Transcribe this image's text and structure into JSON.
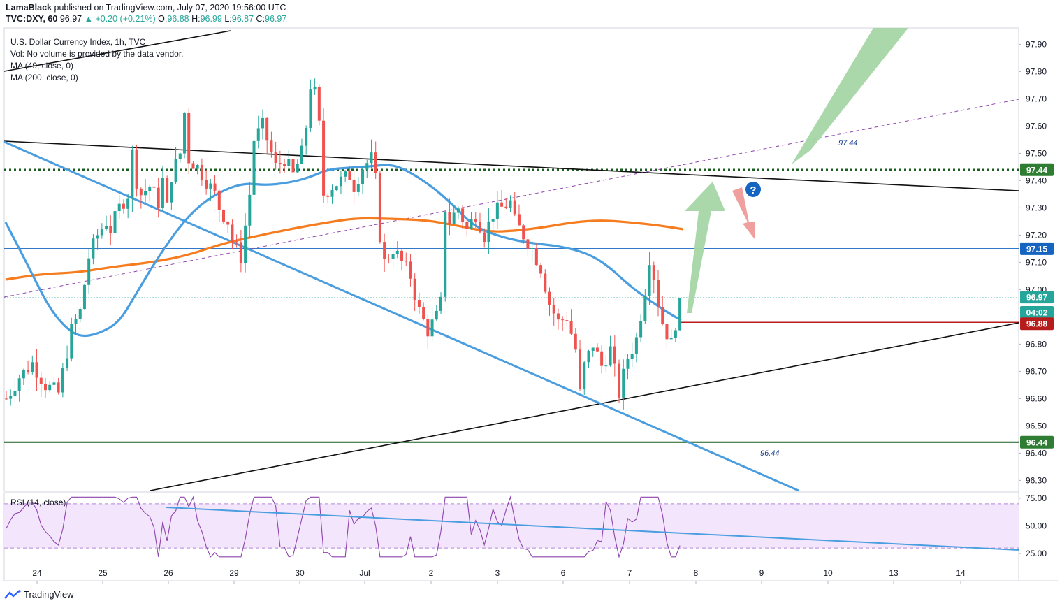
{
  "header": {
    "publisher": "LamaBlack",
    "published_text": "published on TradingView.com, July 07, 2020 19:56:00 UTC",
    "symbol": "TVC:DXY, 60",
    "last": "96.97",
    "change_arrow": "▲",
    "change": "+0.20 (+0.21%)",
    "o_label": "O:",
    "o": "96.88",
    "h_label": "H:",
    "h": "96.99",
    "l_label": "L:",
    "l": "96.87",
    "c_label": "C:",
    "c": "96.97"
  },
  "legend": {
    "title": "U.S. Dollar Currency Index, 1h, TVC",
    "vol": "Vol: No volume is provided by the data vendor.",
    "ma49": "MA (49, close, 0)",
    "ma200": "MA (200, close, 0)"
  },
  "rsi_legend": "RSI (14, close)",
  "footer": {
    "brand": "TradingView"
  },
  "colors": {
    "up": "#26a69a",
    "down": "#ef5350",
    "ma49": "#4a9ee0",
    "ma200": "#f57c1f",
    "zone": "#fdeee0",
    "rsi_band": "#f3e5fb",
    "rsi_line": "#8e44ad",
    "green_arrow": "#a5d6a7",
    "red_arrow": "#ef9a9a"
  },
  "chart_data": [
    {
      "type": "candlestick",
      "title": "U.S. Dollar Currency Index, 1h, TVC",
      "x_labels": [
        "24",
        "25",
        "26",
        "29",
        "30",
        "Jul",
        "2",
        "3",
        "6",
        "7",
        "8",
        "9",
        "10",
        "13",
        "14"
      ],
      "y_ticks": [
        "97.90",
        "97.80",
        "97.70",
        "97.60",
        "97.50",
        "97.40",
        "97.30",
        "97.20",
        "97.10",
        "97.00",
        "96.90",
        "96.80",
        "96.70",
        "96.60",
        "96.50",
        "96.40",
        "96.30"
      ],
      "ylim": [
        96.26,
        97.96
      ],
      "last_price": 96.97,
      "price_tags": [
        {
          "value": 97.44,
          "label": "97.44",
          "color": "#2e7d32"
        },
        {
          "value": 97.15,
          "label": "97.15",
          "color": "#1565c0"
        },
        {
          "value": 96.97,
          "label": "96.97",
          "color": "#26a69a"
        },
        {
          "label": "04:02",
          "color": "#26a69a"
        },
        {
          "value": 96.88,
          "label": "96.88",
          "color": "#b71c1c"
        },
        {
          "value": 96.44,
          "label": "96.44",
          "color": "#2e7d32"
        }
      ],
      "annotations": [
        {
          "text": "97.44"
        },
        {
          "text": "96.44"
        },
        {
          "text": "?"
        }
      ],
      "close_path": [
        [
          0,
          96.6
        ],
        [
          3,
          96.68
        ],
        [
          6,
          96.73
        ],
        [
          9,
          96.65
        ],
        [
          12,
          96.62
        ],
        [
          15,
          96.85
        ],
        [
          17,
          96.92
        ],
        [
          19,
          97.12
        ],
        [
          21,
          97.2
        ],
        [
          23,
          97.25
        ],
        [
          24,
          97.22
        ],
        [
          26,
          97.3
        ],
        [
          28,
          97.35
        ],
        [
          29,
          97.5
        ],
        [
          30,
          97.4
        ],
        [
          31,
          97.35
        ],
        [
          33,
          97.38
        ],
        [
          35,
          97.32
        ],
        [
          36,
          97.4
        ],
        [
          37,
          97.3
        ],
        [
          38,
          97.42
        ],
        [
          40,
          97.5
        ],
        [
          41,
          97.65
        ],
        [
          42,
          97.48
        ],
        [
          44,
          97.45
        ],
        [
          46,
          97.4
        ],
        [
          48,
          97.35
        ],
        [
          49,
          97.3
        ],
        [
          51,
          97.25
        ],
        [
          52,
          97.18
        ],
        [
          54,
          97.12
        ],
        [
          56,
          97.35
        ],
        [
          57,
          97.55
        ],
        [
          59,
          97.6
        ],
        [
          61,
          97.5
        ],
        [
          62,
          97.45
        ],
        [
          64,
          97.48
        ],
        [
          66,
          97.42
        ],
        [
          68,
          97.5
        ],
        [
          69,
          97.6
        ],
        [
          70,
          97.75
        ],
        [
          71,
          97.72
        ],
        [
          72,
          97.6
        ],
        [
          73,
          97.35
        ],
        [
          75,
          97.38
        ],
        [
          77,
          97.4
        ],
        [
          79,
          97.42
        ],
        [
          80,
          97.38
        ],
        [
          82,
          97.45
        ],
        [
          84,
          97.48
        ],
        [
          85,
          97.4
        ],
        [
          86,
          97.2
        ],
        [
          87,
          97.1
        ],
        [
          89,
          97.15
        ],
        [
          91,
          97.1
        ],
        [
          93,
          97.05
        ],
        [
          95,
          96.92
        ],
        [
          97,
          96.85
        ],
        [
          99,
          96.9
        ],
        [
          100,
          96.95
        ],
        [
          101,
          97.3
        ],
        [
          102,
          97.25
        ],
        [
          104,
          97.3
        ],
        [
          106,
          97.22
        ],
        [
          108,
          97.28
        ],
        [
          110,
          97.2
        ],
        [
          112,
          97.28
        ],
        [
          114,
          97.3
        ],
        [
          116,
          97.32
        ],
        [
          117,
          97.25
        ],
        [
          119,
          97.2
        ],
        [
          121,
          97.15
        ],
        [
          123,
          97.08
        ],
        [
          125,
          96.95
        ],
        [
          127,
          96.88
        ],
        [
          129,
          96.9
        ],
        [
          131,
          96.78
        ],
        [
          132,
          96.62
        ],
        [
          133,
          96.72
        ],
        [
          135,
          96.8
        ],
        [
          137,
          96.72
        ],
        [
          139,
          96.78
        ],
        [
          141,
          96.62
        ],
        [
          143,
          96.75
        ],
        [
          145,
          96.82
        ],
        [
          147,
          97.0
        ],
        [
          148,
          97.12
        ],
        [
          149,
          97.05
        ],
        [
          150,
          96.95
        ],
        [
          151,
          96.88
        ],
        [
          153,
          96.8
        ],
        [
          154,
          96.88
        ],
        [
          155,
          96.97
        ]
      ]
    },
    {
      "type": "line",
      "title": "RSI (14, close)",
      "y_ticks": [
        "75.00",
        "50.00",
        "25.00"
      ],
      "ylim": [
        20,
        80
      ],
      "overbought": 70,
      "oversold": 30,
      "x_indexed": true
    }
  ]
}
